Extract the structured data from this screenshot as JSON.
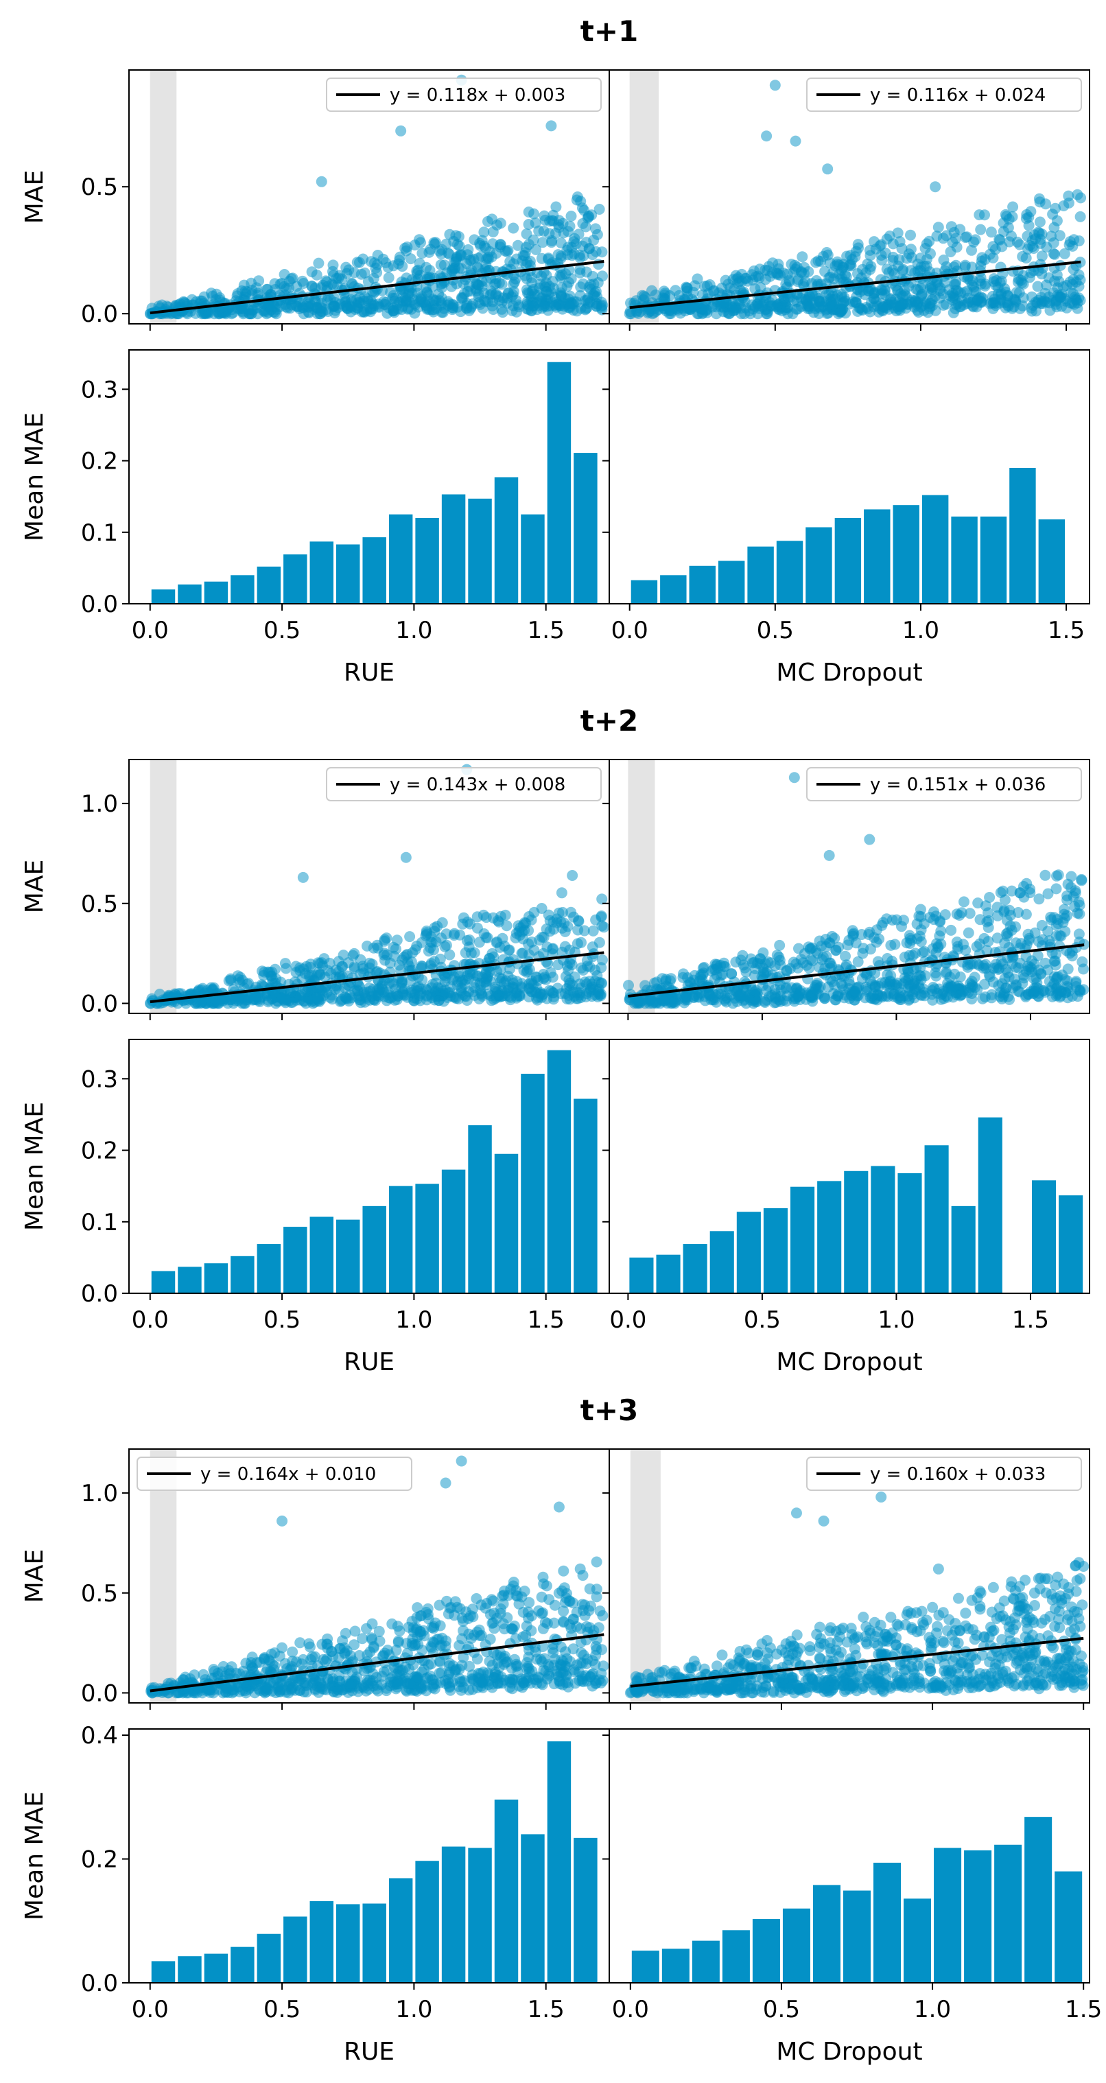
{
  "colors": {
    "bar": "#0391c6",
    "scatter": "#0391c6",
    "fit_line": "#000000",
    "shade": "#e4e4e4"
  },
  "chart_data": [
    {
      "title": "t+1",
      "scatter_ylabel": "MAE",
      "bar_ylabel": "Mean MAE",
      "panels": [
        {
          "method": "RUE",
          "xlabel": "RUE",
          "xlim": [
            -0.08,
            1.74
          ],
          "xticks": [
            "0.0",
            "0.5",
            "1.0",
            "1.5"
          ],
          "scatter": {
            "type": "scatter",
            "ylim": [
              -0.04,
              0.96
            ],
            "yticks": [
              "0.0",
              "0.5"
            ],
            "shade_x": [
              0.0,
              0.1
            ],
            "fit": {
              "slope": 0.118,
              "intercept": 0.003,
              "label": "y = 0.118x + 0.003",
              "legend_loc": "upper right"
            },
            "point_x_range": [
              0.0,
              1.72
            ],
            "point_count": 900,
            "outliers": [
              [
                1.18,
                0.92
              ],
              [
                0.95,
                0.72
              ],
              [
                1.52,
                0.74
              ],
              [
                0.65,
                0.52
              ],
              [
                1.62,
                0.46
              ]
            ]
          },
          "bars": {
            "type": "bar",
            "ylim": [
              0,
              0.355
            ],
            "yticks": [
              "0.0",
              "0.1",
              "0.2",
              "0.3"
            ],
            "bin_width": 0.1,
            "bin_starts": [
              0.0,
              0.1,
              0.2,
              0.3,
              0.4,
              0.5,
              0.6,
              0.7,
              0.8,
              0.9,
              1.0,
              1.1,
              1.2,
              1.3,
              1.4,
              1.5,
              1.6
            ],
            "values": [
              0.02,
              0.027,
              0.031,
              0.04,
              0.052,
              0.069,
              0.087,
              0.083,
              0.093,
              0.125,
              0.12,
              0.153,
              0.147,
              0.177,
              0.125,
              0.338,
              0.211
            ]
          }
        },
        {
          "method": "MC Dropout",
          "xlabel": "MC Dropout",
          "xlim": [
            -0.07,
            1.58
          ],
          "xticks": [
            "0.0",
            "0.5",
            "1.0",
            "1.5"
          ],
          "scatter": {
            "type": "scatter",
            "ylim": [
              -0.04,
              0.96
            ],
            "yticks": [
              "0.0",
              "0.5"
            ],
            "shade_x": [
              0.0,
              0.1
            ],
            "fit": {
              "slope": 0.116,
              "intercept": 0.024,
              "label": "y = 0.116x + 0.024",
              "legend_loc": "upper right"
            },
            "point_x_range": [
              0.0,
              1.55
            ],
            "point_count": 900,
            "outliers": [
              [
                0.5,
                0.9
              ],
              [
                0.47,
                0.7
              ],
              [
                0.57,
                0.68
              ],
              [
                0.68,
                0.57
              ],
              [
                1.05,
                0.5
              ]
            ]
          },
          "bars": {
            "type": "bar",
            "ylim": [
              0,
              0.355
            ],
            "yticks": [
              "0.0",
              "0.1",
              "0.2",
              "0.3"
            ],
            "bin_width": 0.1,
            "bin_starts": [
              0.0,
              0.1,
              0.2,
              0.3,
              0.4,
              0.5,
              0.6,
              0.7,
              0.8,
              0.9,
              1.0,
              1.1,
              1.2,
              1.3,
              1.4
            ],
            "values": [
              0.033,
              0.04,
              0.053,
              0.06,
              0.08,
              0.088,
              0.107,
              0.12,
              0.132,
              0.138,
              0.152,
              0.122,
              0.122,
              0.19,
              0.118
            ]
          }
        }
      ]
    },
    {
      "title": "t+2",
      "scatter_ylabel": "MAE",
      "bar_ylabel": "Mean MAE",
      "panels": [
        {
          "method": "RUE",
          "xlabel": "RUE",
          "xlim": [
            -0.08,
            1.74
          ],
          "xticks": [
            "0.0",
            "0.5",
            "1.0",
            "1.5"
          ],
          "scatter": {
            "type": "scatter",
            "ylim": [
              -0.05,
              1.22
            ],
            "yticks": [
              "0.0",
              "0.5",
              "1.0"
            ],
            "shade_x": [
              0.0,
              0.1
            ],
            "fit": {
              "slope": 0.143,
              "intercept": 0.008,
              "label": "y = 0.143x + 0.008",
              "legend_loc": "upper right"
            },
            "point_x_range": [
              0.0,
              1.72
            ],
            "point_count": 900,
            "outliers": [
              [
                1.2,
                1.17
              ],
              [
                0.97,
                0.73
              ],
              [
                0.58,
                0.63
              ],
              [
                1.6,
                0.64
              ],
              [
                1.68,
                0.07
              ]
            ]
          },
          "bars": {
            "type": "bar",
            "ylim": [
              0,
              0.355
            ],
            "yticks": [
              "0.0",
              "0.1",
              "0.2",
              "0.3"
            ],
            "bin_width": 0.1,
            "bin_starts": [
              0.0,
              0.1,
              0.2,
              0.3,
              0.4,
              0.5,
              0.6,
              0.7,
              0.8,
              0.9,
              1.0,
              1.1,
              1.2,
              1.3,
              1.4,
              1.5,
              1.6
            ],
            "values": [
              0.031,
              0.037,
              0.042,
              0.052,
              0.069,
              0.093,
              0.107,
              0.103,
              0.122,
              0.15,
              0.153,
              0.173,
              0.235,
              0.195,
              0.307,
              0.34,
              0.272
            ]
          }
        },
        {
          "method": "MC Dropout",
          "xlabel": "MC Dropout",
          "xlim": [
            -0.07,
            1.72
          ],
          "xticks": [
            "0.0",
            "0.5",
            "1.0",
            "1.5"
          ],
          "scatter": {
            "type": "scatter",
            "ylim": [
              -0.05,
              1.22
            ],
            "yticks": [
              "0.0",
              "0.5",
              "1.0"
            ],
            "shade_x": [
              0.0,
              0.1
            ],
            "fit": {
              "slope": 0.151,
              "intercept": 0.036,
              "label": "y = 0.151x + 0.036",
              "legend_loc": "upper right"
            },
            "point_x_range": [
              0.0,
              1.7
            ],
            "point_count": 900,
            "outliers": [
              [
                0.62,
                1.13
              ],
              [
                0.9,
                0.82
              ],
              [
                0.75,
                0.74
              ],
              [
                1.6,
                0.42
              ],
              [
                1.47,
                0.1
              ]
            ]
          },
          "bars": {
            "type": "bar",
            "ylim": [
              0,
              0.355
            ],
            "yticks": [
              "0.0",
              "0.1",
              "0.2",
              "0.3"
            ],
            "bin_width": 0.1,
            "bin_starts": [
              0.0,
              0.1,
              0.2,
              0.3,
              0.4,
              0.5,
              0.6,
              0.7,
              0.8,
              0.9,
              1.0,
              1.1,
              1.2,
              1.3,
              1.5,
              1.6
            ],
            "values": [
              0.05,
              0.054,
              0.069,
              0.087,
              0.114,
              0.119,
              0.149,
              0.157,
              0.171,
              0.178,
              0.168,
              0.207,
              0.122,
              0.246,
              0.158,
              0.137
            ]
          }
        }
      ]
    },
    {
      "title": "t+3",
      "scatter_ylabel": "MAE",
      "bar_ylabel": "Mean MAE",
      "panels": [
        {
          "method": "RUE",
          "xlabel": "RUE",
          "xlim": [
            -0.08,
            1.74
          ],
          "xticks": [
            "0.0",
            "0.5",
            "1.0",
            "1.5"
          ],
          "scatter": {
            "type": "scatter",
            "ylim": [
              -0.05,
              1.22
            ],
            "yticks": [
              "0.0",
              "0.5",
              "1.0"
            ],
            "shade_x": [
              0.0,
              0.1
            ],
            "fit": {
              "slope": 0.164,
              "intercept": 0.01,
              "label": "y = 0.164x + 0.010",
              "legend_loc": "upper left"
            },
            "point_x_range": [
              0.0,
              1.72
            ],
            "point_count": 900,
            "outliers": [
              [
                1.18,
                1.16
              ],
              [
                1.12,
                1.05
              ],
              [
                1.55,
                0.93
              ],
              [
                0.5,
                0.86
              ],
              [
                1.63,
                0.62
              ]
            ]
          },
          "bars": {
            "type": "bar",
            "ylim": [
              0,
              0.41
            ],
            "yticks": [
              "0.0",
              "0.2",
              "0.4"
            ],
            "bin_width": 0.1,
            "bin_starts": [
              0.0,
              0.1,
              0.2,
              0.3,
              0.4,
              0.5,
              0.6,
              0.7,
              0.8,
              0.9,
              1.0,
              1.1,
              1.2,
              1.3,
              1.4,
              1.5,
              1.6
            ],
            "values": [
              0.035,
              0.043,
              0.047,
              0.058,
              0.079,
              0.107,
              0.132,
              0.127,
              0.128,
              0.169,
              0.197,
              0.22,
              0.218,
              0.296,
              0.24,
              0.39,
              0.234
            ]
          }
        },
        {
          "method": "MC Dropout",
          "xlabel": "MC Dropout",
          "xlim": [
            -0.07,
            1.52
          ],
          "xticks": [
            "0.0",
            "0.5",
            "1.0",
            "1.5"
          ],
          "scatter": {
            "type": "scatter",
            "ylim": [
              -0.05,
              1.22
            ],
            "yticks": [
              "0.0",
              "0.5",
              "1.0"
            ],
            "shade_x": [
              0.0,
              0.1
            ],
            "fit": {
              "slope": 0.16,
              "intercept": 0.033,
              "label": "y = 0.160x + 0.033",
              "legend_loc": "upper right"
            },
            "point_x_range": [
              0.0,
              1.5
            ],
            "point_count": 900,
            "outliers": [
              [
                0.83,
                0.98
              ],
              [
                0.55,
                0.9
              ],
              [
                0.64,
                0.86
              ],
              [
                1.02,
                0.62
              ],
              [
                1.45,
                0.12
              ]
            ]
          },
          "bars": {
            "type": "bar",
            "ylim": [
              0,
              0.41
            ],
            "yticks": [
              "0.0",
              "0.2",
              "0.4"
            ],
            "bin_width": 0.1,
            "bin_starts": [
              0.0,
              0.1,
              0.2,
              0.3,
              0.4,
              0.5,
              0.6,
              0.7,
              0.8,
              0.9,
              1.0,
              1.1,
              1.2,
              1.3,
              1.4
            ],
            "values": [
              0.052,
              0.055,
              0.068,
              0.085,
              0.103,
              0.12,
              0.158,
              0.149,
              0.194,
              0.136,
              0.218,
              0.214,
              0.223,
              0.268,
              0.18
            ]
          }
        }
      ]
    }
  ]
}
